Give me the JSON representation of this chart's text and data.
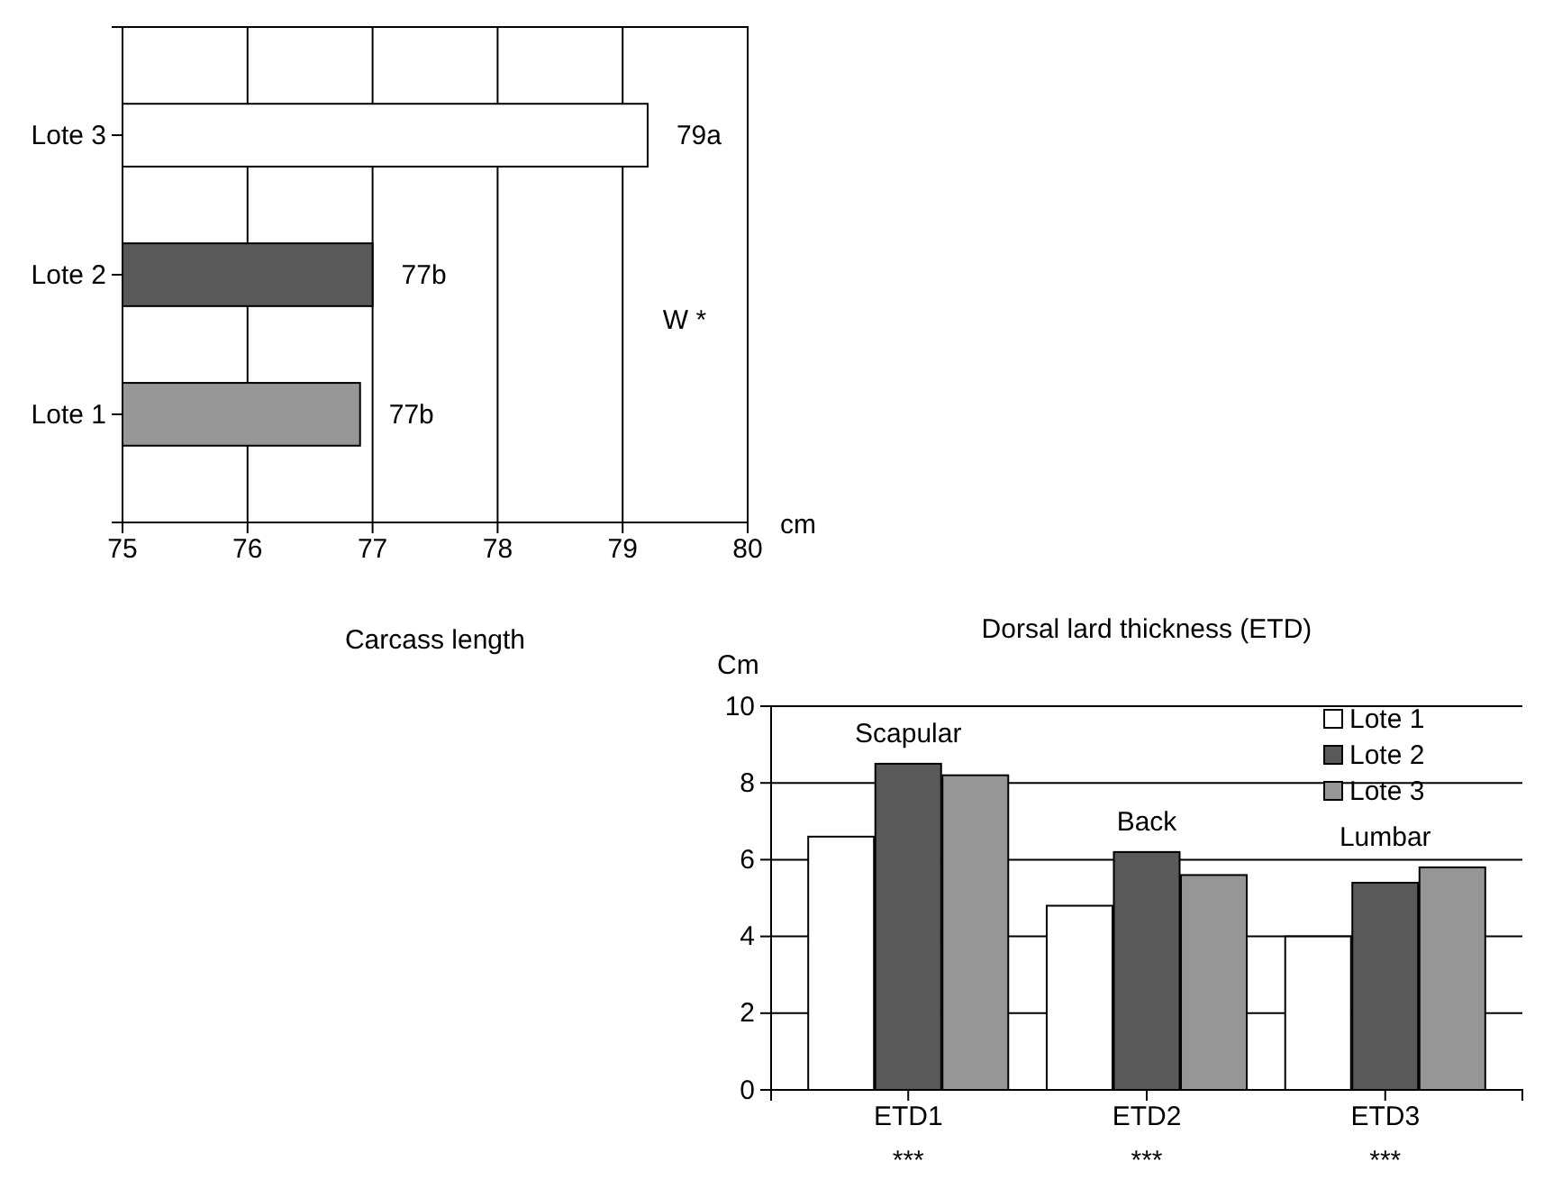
{
  "chart_data": [
    {
      "type": "bar",
      "orientation": "horizontal",
      "title": "Carcass length",
      "xlabel": "cm",
      "categories": [
        "Lote 3",
        "Lote 2",
        "Lote 1"
      ],
      "values": [
        79.2,
        77.0,
        76.9
      ],
      "colors": [
        "#ffffff",
        "#595959",
        "#969696"
      ],
      "value_labels": [
        "79a",
        "77b",
        "77b"
      ],
      "xlim": [
        75,
        80
      ],
      "xticks": [
        75,
        76,
        77,
        78,
        79,
        80
      ],
      "grid": "x",
      "annotations": [
        "W *"
      ]
    },
    {
      "type": "bar",
      "title": "Dorsal lard thickness (ETD)",
      "ylabel": "Cm",
      "categories": [
        "ETD1",
        "ETD2",
        "ETD3"
      ],
      "series": [
        {
          "name": "Lote 1",
          "color": "#ffffff",
          "values": [
            6.6,
            4.8,
            4.0
          ]
        },
        {
          "name": "Lote 2",
          "color": "#595959",
          "values": [
            8.5,
            6.2,
            5.4
          ]
        },
        {
          "name": "Lote 3",
          "color": "#969696",
          "values": [
            8.2,
            5.6,
            5.8
          ]
        }
      ],
      "ylim": [
        0,
        10
      ],
      "yticks": [
        0,
        2,
        4,
        6,
        8,
        10
      ],
      "grid": "y",
      "legend": "top right",
      "annotations": [
        "Scapular",
        "Back",
        "Lumbar",
        "***",
        "***",
        "***"
      ]
    }
  ]
}
